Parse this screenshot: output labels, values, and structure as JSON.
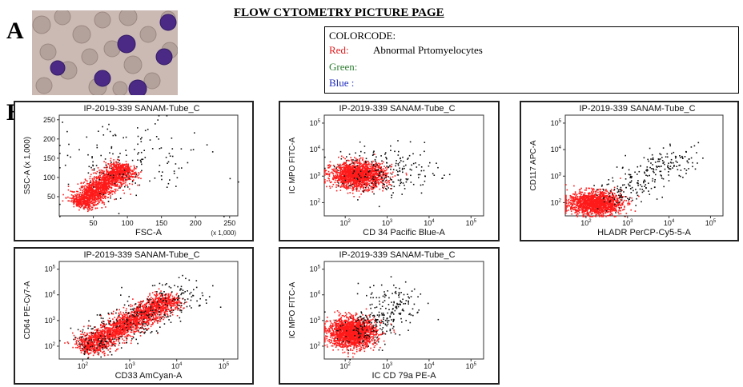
{
  "labels": {
    "panel_a": "A",
    "panel_b": "B"
  },
  "page_title": "FLOW CYTOMETRY PICTURE PAGE",
  "color_code": {
    "heading": "COLORCODE:",
    "red_label": "Red:",
    "red_value": "Abnormal Prtomyelocytes",
    "green_label": "Green:",
    "blue_label": "Blue :"
  },
  "colors": {
    "red": "#e0191c",
    "green": "#2e7d32",
    "blue": "#1f2bbd",
    "events": "#ff1a1a",
    "purple_cell": "#4a2a85"
  },
  "chart_data": [
    {
      "type": "scatter",
      "title": "IP-2019-339 SANAM-Tube_C",
      "xlabel": "FSC-A",
      "ylabel": "SSC-A",
      "ylabel_unit": "(x 1,000)",
      "xlabel_unit": "(x 1,000)",
      "scale": "linear",
      "x_ticks": [
        "50",
        "100",
        "150",
        "200",
        "250"
      ],
      "y_ticks": [
        "50",
        "100",
        "150",
        "200",
        "250"
      ],
      "xlim": [
        0,
        262
      ],
      "ylim": [
        0,
        262
      ],
      "clouds": [
        {
          "color": "red",
          "type": "diag",
          "n": 1800,
          "cx": 28,
          "cy": 30,
          "sx": 4,
          "sy": 4,
          "dx": 70,
          "dy": 100,
          "spread": 16
        },
        {
          "color": "black",
          "type": "blob",
          "n": 160,
          "cx": 100,
          "cy": 140,
          "sx": 55,
          "sy": 55
        }
      ]
    },
    {
      "type": "scatter",
      "title": "IP-2019-339 SANAM-Tube_C",
      "xlabel": "CD 34 Pacific Blue-A",
      "ylabel": "IC MPO FITC-A",
      "scale": "log",
      "x_ticks": [
        "10^2",
        "10^3",
        "10^4",
        "10^5"
      ],
      "y_ticks": [
        "10^2",
        "10^3",
        "10^4",
        "10^5"
      ],
      "xlim": [
        1.5,
        5.3
      ],
      "ylim": [
        1.5,
        5.3
      ],
      "clouds": [
        {
          "color": "red",
          "type": "blob",
          "n": 1700,
          "cx": 2.3,
          "cy": 3.05,
          "sx": 0.32,
          "sy": 0.24
        },
        {
          "color": "black",
          "type": "blob",
          "n": 220,
          "cx": 3.0,
          "cy": 3.2,
          "sx": 0.6,
          "sy": 0.45
        }
      ]
    },
    {
      "type": "scatter",
      "title": "IP-2019-339 SANAM-Tube_C",
      "xlabel": "HLADR PerCP-Cy5-5-A",
      "ylabel": "CD117 APC-A",
      "scale": "log",
      "x_ticks": [
        "10^2",
        "10^3",
        "10^4",
        "10^5"
      ],
      "y_ticks": [
        "10^2",
        "10^3",
        "10^4",
        "10^5"
      ],
      "xlim": [
        1.5,
        5.3
      ],
      "ylim": [
        1.5,
        5.3
      ],
      "clouds": [
        {
          "color": "red",
          "type": "blob",
          "n": 1500,
          "cx": 2.2,
          "cy": 2.0,
          "sx": 0.32,
          "sy": 0.22
        },
        {
          "color": "black",
          "type": "diag",
          "n": 250,
          "cx": 2.5,
          "cy": 2.1,
          "sx": 0.2,
          "sy": 0.2,
          "dx": 2.0,
          "dy": 1.8,
          "spread": 0.35
        }
      ]
    },
    {
      "type": "scatter",
      "title": "IP-2019-339 SANAM-Tube_C",
      "xlabel": "CD33 AmCyan-A",
      "ylabel": "CD64 PE-Cy7-A",
      "scale": "log",
      "x_ticks": [
        "10^2",
        "10^3",
        "10^4",
        "10^5"
      ],
      "y_ticks": [
        "10^2",
        "10^3",
        "10^4",
        "10^5"
      ],
      "xlim": [
        1.5,
        5.3
      ],
      "ylim": [
        1.5,
        5.3
      ],
      "clouds": [
        {
          "color": "red",
          "type": "diag",
          "n": 2200,
          "cx": 2.0,
          "cy": 1.9,
          "sx": 0.1,
          "sy": 0.1,
          "dx": 1.9,
          "dy": 2.0,
          "spread": 0.22
        },
        {
          "color": "black",
          "type": "diag",
          "n": 320,
          "cx": 2.0,
          "cy": 1.9,
          "sx": 0.2,
          "sy": 0.2,
          "dx": 2.3,
          "dy": 2.3,
          "spread": 0.4
        }
      ]
    },
    {
      "type": "scatter",
      "title": "IP-2019-339 SANAM-Tube_C",
      "xlabel": "IC CD 79a PE-A",
      "ylabel": "IC MPO FITC-A",
      "scale": "log",
      "x_ticks": [
        "10^2",
        "10^3",
        "10^4",
        "10^5"
      ],
      "y_ticks": [
        "10^2",
        "10^3",
        "10^4",
        "10^5"
      ],
      "xlim": [
        1.5,
        5.3
      ],
      "ylim": [
        1.5,
        5.3
      ],
      "clouds": [
        {
          "color": "red",
          "type": "blob",
          "n": 1900,
          "cx": 2.15,
          "cy": 2.55,
          "sx": 0.28,
          "sy": 0.28
        },
        {
          "color": "black",
          "type": "diag",
          "n": 280,
          "cx": 2.2,
          "cy": 2.3,
          "sx": 0.25,
          "sy": 0.25,
          "dx": 1.2,
          "dy": 1.6,
          "spread": 0.35
        }
      ]
    }
  ]
}
